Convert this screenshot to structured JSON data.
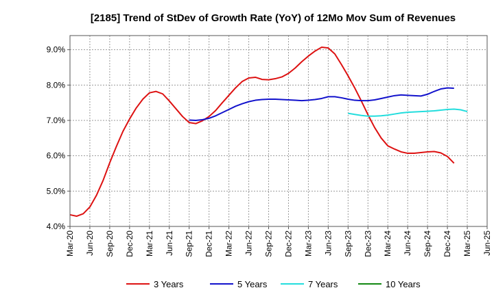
{
  "chart_data": {
    "type": "line",
    "title": "[2185]  Trend of StDev of Growth Rate (YoY) of 12Mo Mov Sum of Revenues",
    "xlabel": "",
    "ylabel": "",
    "ylim": [
      4.0,
      9.4
    ],
    "yticks": [
      4.0,
      5.0,
      6.0,
      7.0,
      8.0,
      9.0
    ],
    "ytick_labels": [
      "4.0%",
      "5.0%",
      "6.0%",
      "7.0%",
      "8.0%",
      "9.0%"
    ],
    "xlim": [
      "Mar-20",
      "Jun-25"
    ],
    "xtick_labels": [
      "Mar-20",
      "Jun-20",
      "Sep-20",
      "Dec-20",
      "Mar-21",
      "Jun-21",
      "Sep-21",
      "Dec-21",
      "Mar-22",
      "Jun-22",
      "Sep-22",
      "Dec-22",
      "Mar-23",
      "Jun-23",
      "Sep-23",
      "Dec-23",
      "Mar-24",
      "Jun-24",
      "Sep-24",
      "Dec-24",
      "Mar-25",
      "Jun-25"
    ],
    "grid": true,
    "legend_position": "bottom",
    "series": [
      {
        "name": "3 Years",
        "color": "#dd1111",
        "start": "Mar-20",
        "values": [
          4.33,
          4.29,
          4.36,
          4.55,
          4.88,
          5.3,
          5.8,
          6.26,
          6.69,
          7.04,
          7.35,
          7.6,
          7.78,
          7.82,
          7.75,
          7.55,
          7.33,
          7.11,
          6.94,
          6.91,
          6.99,
          7.11,
          7.28,
          7.5,
          7.71,
          7.92,
          8.1,
          8.2,
          8.22,
          8.16,
          8.15,
          8.18,
          8.23,
          8.33,
          8.48,
          8.66,
          8.82,
          8.96,
          9.07,
          9.05,
          8.88,
          8.58,
          8.26,
          7.92,
          7.55,
          7.16,
          6.8,
          6.5,
          6.28,
          6.19,
          6.11,
          6.07,
          6.07,
          6.09,
          6.11,
          6.12,
          6.08,
          5.98,
          5.79
        ]
      },
      {
        "name": "5 Years",
        "color": "#1111cc",
        "start": "Sep-21",
        "values": [
          7.01,
          7.0,
          7.02,
          7.06,
          7.13,
          7.22,
          7.31,
          7.4,
          7.47,
          7.53,
          7.57,
          7.59,
          7.6,
          7.6,
          7.59,
          7.58,
          7.57,
          7.56,
          7.57,
          7.59,
          7.62,
          7.67,
          7.67,
          7.64,
          7.6,
          7.57,
          7.56,
          7.56,
          7.58,
          7.62,
          7.66,
          7.7,
          7.72,
          7.71,
          7.7,
          7.69,
          7.74,
          7.82,
          7.89,
          7.92,
          7.91
        ]
      },
      {
        "name": "7 Years",
        "color": "#22dddd",
        "start": "Sep-23",
        "values": [
          7.2,
          7.17,
          7.14,
          7.12,
          7.12,
          7.13,
          7.15,
          7.18,
          7.21,
          7.23,
          7.24,
          7.25,
          7.26,
          7.27,
          7.29,
          7.31,
          7.32,
          7.3,
          7.25
        ]
      },
      {
        "name": "10 Years",
        "color": "#118811",
        "start": "Mar-25",
        "values": []
      }
    ]
  }
}
